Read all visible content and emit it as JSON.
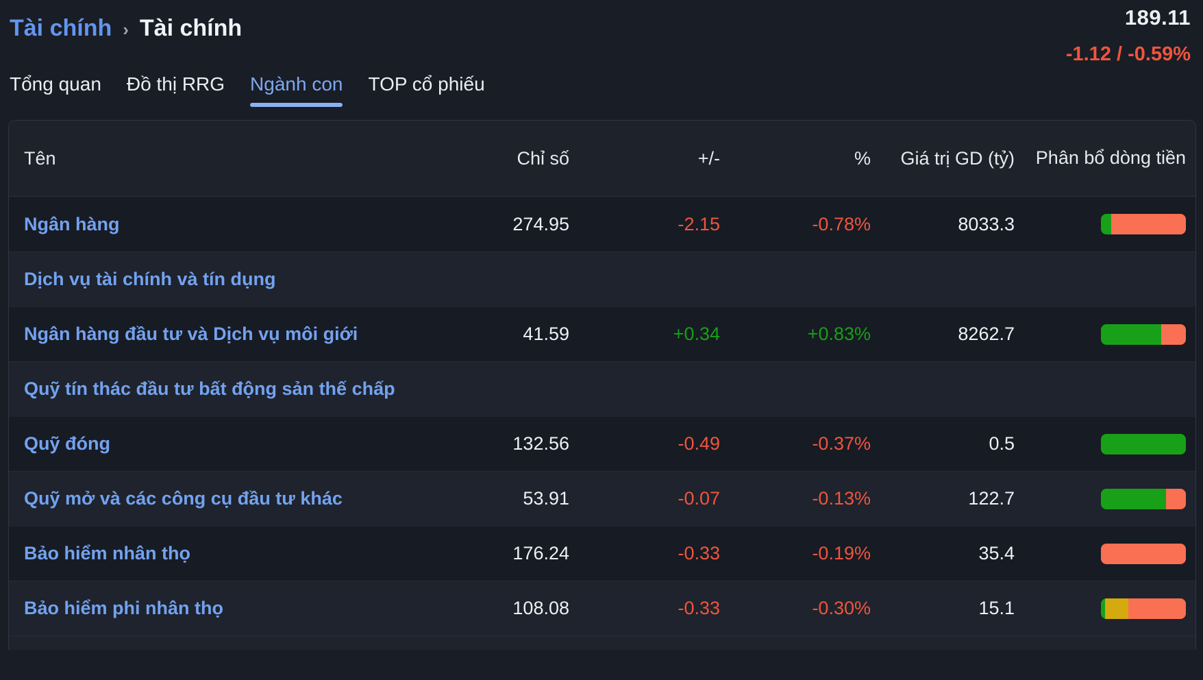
{
  "breadcrumb": {
    "parent": "Tài chính",
    "separator": "›",
    "current": "Tài chính"
  },
  "quote": {
    "value": "189.11",
    "change": "-1.12 / -0.59%"
  },
  "tabs": [
    {
      "label": "Tổng quan",
      "active": false
    },
    {
      "label": "Đồ thị RRG",
      "active": false
    },
    {
      "label": "Ngành con",
      "active": true
    },
    {
      "label": "TOP cổ phiếu",
      "active": false
    }
  ],
  "table": {
    "columns": {
      "name": "Tên",
      "index": "Chỉ số",
      "change": "+/-",
      "pct": "%",
      "value": "Giá trị GD (tỷ)",
      "flow": "Phân bổ dòng tiền"
    },
    "rows": [
      {
        "name": "Ngân hàng",
        "index": "274.95",
        "change": "-2.15",
        "pct": "-0.78%",
        "value": "8033.3",
        "trend": "down",
        "flow_bar": [
          {
            "color": "green",
            "pct": 12
          },
          {
            "color": "orange",
            "pct": 88
          }
        ]
      },
      {
        "name": "Dịch vụ tài chính và tín dụng",
        "index": "",
        "change": "",
        "pct": "",
        "value": "",
        "trend": "none",
        "flow_bar": []
      },
      {
        "name": "Ngân hàng đầu tư và Dịch vụ môi giới",
        "index": "41.59",
        "change": "+0.34",
        "pct": "+0.83%",
        "value": "8262.7",
        "trend": "up",
        "flow_bar": [
          {
            "color": "green",
            "pct": 71
          },
          {
            "color": "orange",
            "pct": 29
          }
        ]
      },
      {
        "name": "Quỹ tín thác đầu tư bất động sản thế chấp",
        "index": "",
        "change": "",
        "pct": "",
        "value": "",
        "trend": "none",
        "flow_bar": []
      },
      {
        "name": "Quỹ đóng",
        "index": "132.56",
        "change": "-0.49",
        "pct": "-0.37%",
        "value": "0.5",
        "trend": "down",
        "flow_bar": [
          {
            "color": "green",
            "pct": 100
          }
        ]
      },
      {
        "name": "Quỹ mở và các công cụ đầu tư khác",
        "index": "53.91",
        "change": "-0.07",
        "pct": "-0.13%",
        "value": "122.7",
        "trend": "down",
        "flow_bar": [
          {
            "color": "green",
            "pct": 77
          },
          {
            "color": "orange",
            "pct": 23
          }
        ]
      },
      {
        "name": "Bảo hiểm nhân thọ",
        "index": "176.24",
        "change": "-0.33",
        "pct": "-0.19%",
        "value": "35.4",
        "trend": "down",
        "flow_bar": [
          {
            "color": "orange",
            "pct": 100
          }
        ]
      },
      {
        "name": "Bảo hiểm phi nhân thọ",
        "index": "108.08",
        "change": "-0.33",
        "pct": "-0.30%",
        "value": "15.1",
        "trend": "down",
        "flow_bar": [
          {
            "color": "green",
            "pct": 5
          },
          {
            "color": "yellow",
            "pct": 27
          },
          {
            "color": "orange",
            "pct": 68
          }
        ]
      }
    ]
  },
  "colors": {
    "up": "#15a015",
    "down": "#f0553d",
    "bar_green": "#18a118",
    "bar_orange": "#fa7052",
    "bar_yellow": "#d4aa0e",
    "active_tab": "#7ea8f0"
  }
}
